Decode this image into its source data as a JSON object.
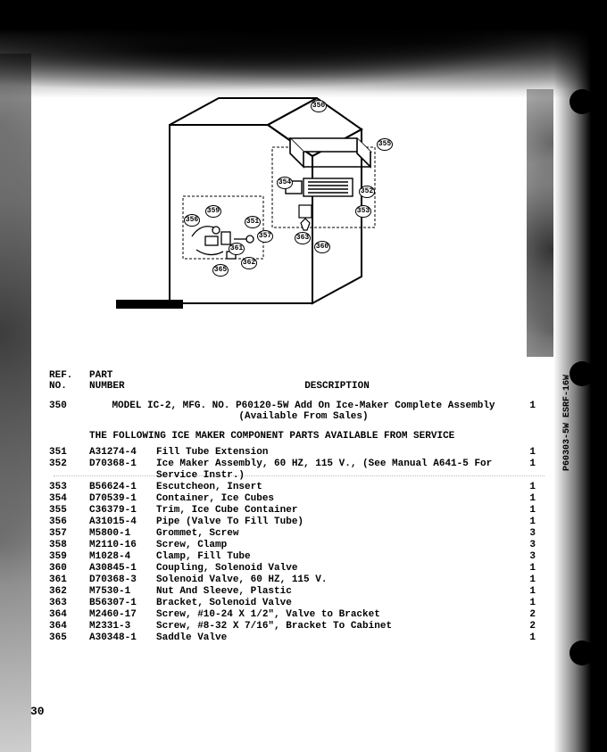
{
  "header": {
    "ref_label_1": "REF.",
    "ref_label_2": "NO.",
    "part_label_1": "PART",
    "part_label_2": "NUMBER",
    "desc_label": "DESCRIPTION"
  },
  "side_label": "P60303-5W  ESRF-16W",
  "model": {
    "ref": "350",
    "desc_line1": "MODEL IC-2, MFG. NO. P60120-5W Add On Ice-Maker Complete Assembly",
    "desc_line2": "(Available From Sales)",
    "qty": "1"
  },
  "section_note": "THE FOLLOWING ICE MAKER COMPONENT PARTS AVAILABLE FROM SERVICE",
  "parts": [
    {
      "ref": "351",
      "pn": "A31274-4",
      "desc": "Fill Tube Extension",
      "qty": "1"
    },
    {
      "ref": "352",
      "pn": "D70368-1",
      "desc": "Ice Maker Assembly, 60 HZ, 115 V., (See Manual A641-5 For Service Instr.)",
      "qty": "1"
    },
    {
      "ref": "353",
      "pn": "B56624-1",
      "desc": "Escutcheon, Insert",
      "qty": "1"
    },
    {
      "ref": "354",
      "pn": "D70539-1",
      "desc": "Container, Ice Cubes",
      "qty": "1"
    },
    {
      "ref": "355",
      "pn": "C36379-1",
      "desc": "Trim, Ice Cube Container",
      "qty": "1"
    },
    {
      "ref": "356",
      "pn": "A31015-4",
      "desc": "Pipe (Valve To Fill Tube)",
      "qty": "1"
    },
    {
      "ref": "357",
      "pn": "M5800-1",
      "desc": "Grommet, Screw",
      "qty": "3"
    },
    {
      "ref": "358",
      "pn": "M2110-16",
      "desc": "Screw, Clamp",
      "qty": "3"
    },
    {
      "ref": "359",
      "pn": "M1028-4",
      "desc": "Clamp, Fill Tube",
      "qty": "3"
    },
    {
      "ref": "360",
      "pn": "A30845-1",
      "desc": "Coupling, Solenoid Valve",
      "qty": "1"
    },
    {
      "ref": "361",
      "pn": "D70368-3",
      "desc": "Solenoid Valve, 60 HZ, 115 V.",
      "qty": "1"
    },
    {
      "ref": "362",
      "pn": "M7530-1",
      "desc": "Nut And Sleeve, Plastic",
      "qty": "1"
    },
    {
      "ref": "363",
      "pn": "B56307-1",
      "desc": "Bracket, Solenoid Valve",
      "qty": "1"
    },
    {
      "ref": "364",
      "pn": "M2460-17",
      "desc": "Screw, #10-24 X 1/2\", Valve to Bracket",
      "qty": "2"
    },
    {
      "ref": "364",
      "pn": "M2331-3",
      "desc": "Screw, #8-32 X 7/16\", Bracket To Cabinet",
      "qty": "2"
    },
    {
      "ref": "365",
      "pn": "A30348-1",
      "desc": "Saddle Valve",
      "qty": "1"
    }
  ],
  "page_number": "30",
  "callouts": {
    "c350": "350",
    "c355": "355",
    "c354": "354",
    "c352": "352",
    "c353": "353",
    "c351": "351",
    "c356": "356",
    "c357": "357",
    "c359": "359",
    "c361": "361",
    "c362": "362",
    "c365": "365",
    "c363": "363",
    "c360": "360"
  }
}
